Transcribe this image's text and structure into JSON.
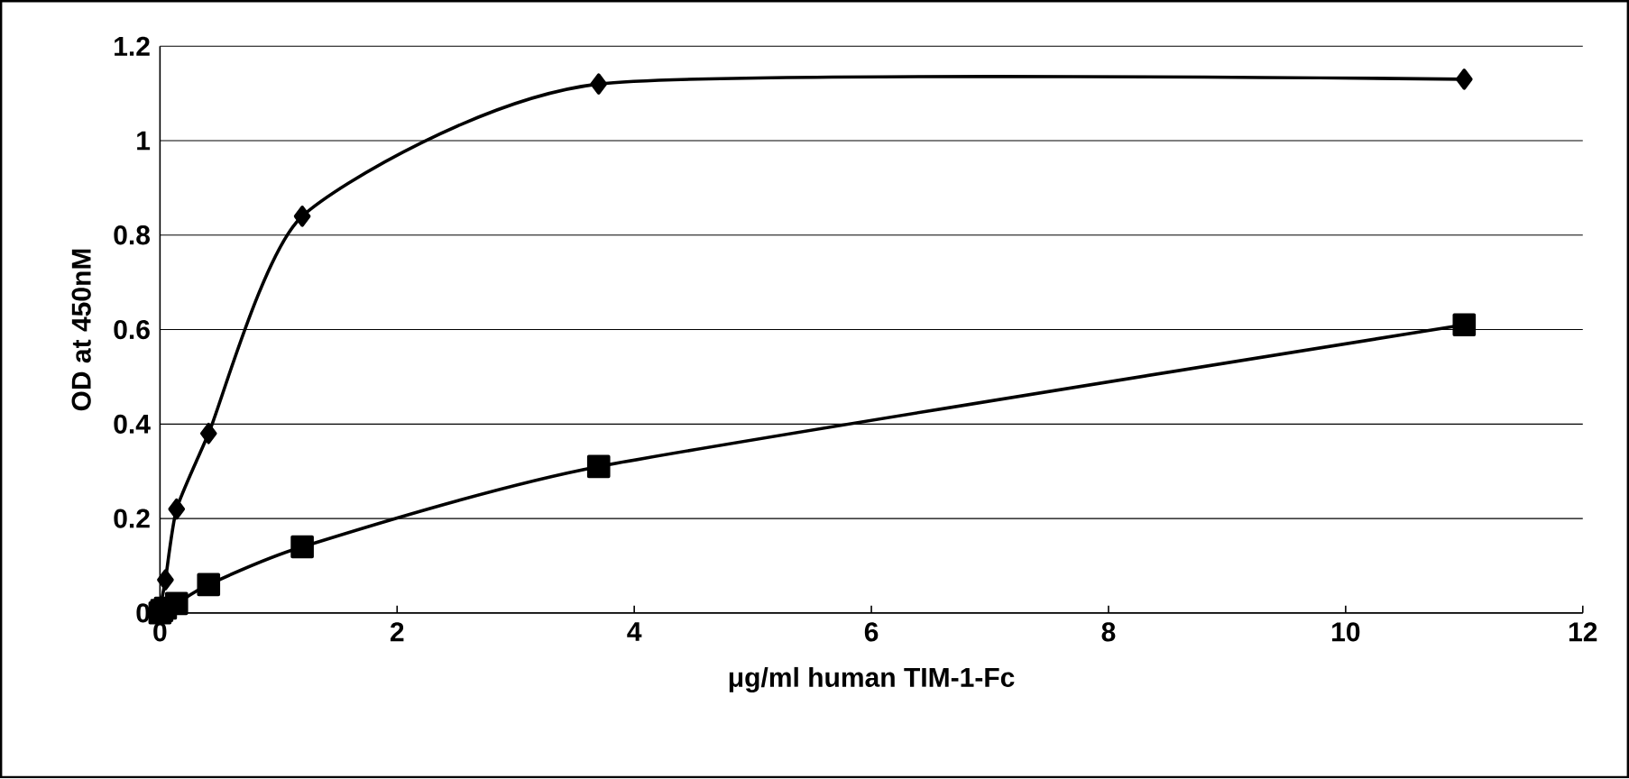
{
  "chart_data": {
    "type": "line",
    "xlabel": "μg/ml human TIM-1-Fc",
    "ylabel": "OD at 450nM",
    "xlim": [
      0,
      12
    ],
    "xticks": [
      0,
      2,
      4,
      6,
      8,
      10,
      12
    ],
    "ylim": [
      0,
      1.2
    ],
    "yticks": [
      0,
      0.2,
      0.4,
      0.6,
      0.8,
      1,
      1.2
    ],
    "grid": "y",
    "line_style": "solid",
    "x": [
      0,
      0.015,
      0.046,
      0.14,
      0.41,
      1.2,
      3.7,
      11
    ],
    "series": [
      {
        "color": "#000000",
        "marker": "diamond",
        "values": [
          0.01,
          null,
          0.07,
          0.22,
          0.38,
          0.84,
          1.12,
          1.13
        ]
      },
      {
        "color": "#000000",
        "marker": "square",
        "values": [
          0,
          0.005,
          0.01,
          0.02,
          0.06,
          0.14,
          0.31,
          0.61
        ]
      }
    ]
  }
}
